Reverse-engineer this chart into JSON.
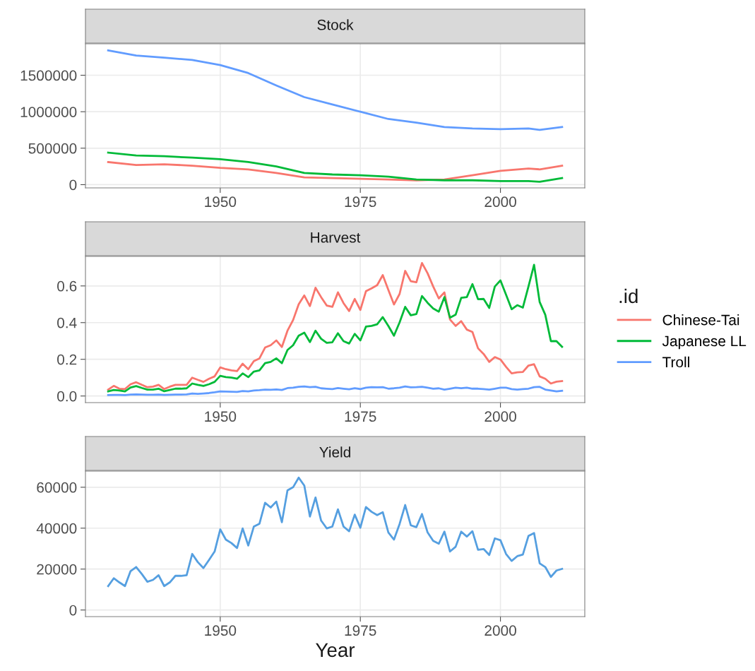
{
  "chart_data": [
    {
      "type": "line",
      "title": "Stock",
      "xlim": [
        1925.95,
        2015.05
      ],
      "xticks": [
        1950,
        1975,
        2000
      ],
      "ylim": [
        -44000,
        1931000
      ],
      "yticks": [
        0,
        500000,
        1000000,
        1500000
      ],
      "grid": true,
      "legend": false,
      "series": [
        {
          "color": "#f8766d",
          "x": [
            1930,
            1935,
            1940,
            1945,
            1950,
            1955,
            1960,
            1965,
            1970,
            1975,
            1980,
            1985,
            1990,
            1995,
            2000,
            2005,
            2007,
            2011
          ],
          "values": [
            310000,
            270000,
            280000,
            260000,
            230000,
            210000,
            160000,
            100000,
            90000,
            80000,
            70000,
            60000,
            70000,
            130000,
            190000,
            220000,
            210000,
            260000
          ]
        },
        {
          "color": "#00ba38",
          "x": [
            1930,
            1935,
            1940,
            1945,
            1950,
            1955,
            1960,
            1965,
            1970,
            1975,
            1980,
            1985,
            1990,
            1995,
            2000,
            2005,
            2007,
            2011
          ],
          "values": [
            440000,
            400000,
            390000,
            370000,
            350000,
            310000,
            250000,
            160000,
            140000,
            130000,
            110000,
            70000,
            60000,
            60000,
            50000,
            50000,
            40000,
            90000
          ]
        },
        {
          "color": "#619cff",
          "x": [
            1930,
            1935,
            1940,
            1945,
            1950,
            1955,
            1960,
            1965,
            1970,
            1975,
            1980,
            1985,
            1990,
            1995,
            2000,
            2005,
            2007,
            2011
          ],
          "values": [
            1840000,
            1770000,
            1740000,
            1710000,
            1640000,
            1530000,
            1360000,
            1200000,
            1100000,
            1000000,
            900000,
            850000,
            790000,
            770000,
            760000,
            770000,
            750000,
            790000
          ]
        }
      ]
    },
    {
      "type": "line",
      "title": "Harvest",
      "xlim": [
        1925.95,
        2015.05
      ],
      "xticks": [
        1950,
        1975,
        2000
      ],
      "ylim": [
        -0.036,
        0.761
      ],
      "yticks": [
        {
          "value": 0,
          "label": "0.0"
        },
        0.2,
        0.4,
        0.6
      ],
      "grid": true,
      "legend": "right",
      "legend_title": ".id",
      "x": [
        1930,
        1931,
        1932,
        1933,
        1934,
        1935,
        1936,
        1937,
        1938,
        1939,
        1940,
        1941,
        1942,
        1943,
        1944,
        1945,
        1946,
        1947,
        1948,
        1949,
        1950,
        1951,
        1952,
        1953,
        1954,
        1955,
        1956,
        1957,
        1958,
        1959,
        1960,
        1961,
        1962,
        1963,
        1964,
        1965,
        1966,
        1967,
        1968,
        1969,
        1970,
        1971,
        1972,
        1973,
        1974,
        1975,
        1976,
        1977,
        1978,
        1979,
        1980,
        1981,
        1982,
        1983,
        1984,
        1985,
        1986,
        1987,
        1988,
        1989,
        1990,
        1991,
        1992,
        1993,
        1994,
        1995,
        1996,
        1997,
        1998,
        1999,
        2000,
        2001,
        2002,
        2003,
        2004,
        2005,
        2006,
        2007,
        2008,
        2009,
        2010,
        2011
      ],
      "series": [
        {
          "name": "Chinese-Tai",
          "color": "#f8766d",
          "values": [
            0.035,
            0.055,
            0.04,
            0.038,
            0.064,
            0.075,
            0.061,
            0.048,
            0.051,
            0.061,
            0.038,
            0.051,
            0.061,
            0.061,
            0.061,
            0.1,
            0.088,
            0.077,
            0.094,
            0.107,
            0.156,
            0.146,
            0.14,
            0.136,
            0.176,
            0.146,
            0.19,
            0.205,
            0.264,
            0.277,
            0.303,
            0.267,
            0.356,
            0.414,
            0.5,
            0.548,
            0.49,
            0.59,
            0.539,
            0.493,
            0.486,
            0.565,
            0.506,
            0.463,
            0.529,
            0.469,
            0.571,
            0.587,
            0.604,
            0.659,
            0.578,
            0.499,
            0.556,
            0.682,
            0.626,
            0.62,
            0.725,
            0.669,
            0.597,
            0.532,
            0.565,
            0.417,
            0.382,
            0.408,
            0.362,
            0.349,
            0.26,
            0.229,
            0.186,
            0.212,
            0.199,
            0.159,
            0.123,
            0.129,
            0.131,
            0.166,
            0.173,
            0.107,
            0.094,
            0.068,
            0.078,
            0.081
          ]
        },
        {
          "name": "Japanese LL",
          "color": "#00ba38",
          "values": [
            0.025,
            0.033,
            0.03,
            0.025,
            0.046,
            0.054,
            0.044,
            0.035,
            0.035,
            0.04,
            0.026,
            0.033,
            0.04,
            0.04,
            0.042,
            0.068,
            0.061,
            0.055,
            0.064,
            0.077,
            0.11,
            0.103,
            0.1,
            0.094,
            0.123,
            0.103,
            0.133,
            0.14,
            0.179,
            0.186,
            0.205,
            0.179,
            0.251,
            0.277,
            0.329,
            0.345,
            0.294,
            0.356,
            0.312,
            0.29,
            0.293,
            0.342,
            0.299,
            0.286,
            0.339,
            0.303,
            0.378,
            0.382,
            0.391,
            0.43,
            0.382,
            0.329,
            0.401,
            0.486,
            0.44,
            0.447,
            0.545,
            0.508,
            0.477,
            0.46,
            0.539,
            0.427,
            0.443,
            0.535,
            0.539,
            0.61,
            0.528,
            0.529,
            0.48,
            0.597,
            0.63,
            0.552,
            0.473,
            0.495,
            0.482,
            0.597,
            0.715,
            0.512,
            0.443,
            0.299,
            0.299,
            0.268
          ]
        },
        {
          "name": "Troll",
          "color": "#619cff",
          "values": [
            0.005,
            0.006,
            0.006,
            0.005,
            0.008,
            0.009,
            0.008,
            0.007,
            0.007,
            0.008,
            0.006,
            0.007,
            0.008,
            0.008,
            0.009,
            0.014,
            0.012,
            0.014,
            0.016,
            0.02,
            0.025,
            0.024,
            0.023,
            0.022,
            0.027,
            0.025,
            0.03,
            0.032,
            0.035,
            0.034,
            0.036,
            0.033,
            0.043,
            0.045,
            0.05,
            0.052,
            0.048,
            0.05,
            0.042,
            0.04,
            0.038,
            0.043,
            0.04,
            0.037,
            0.042,
            0.038,
            0.045,
            0.048,
            0.047,
            0.048,
            0.04,
            0.042,
            0.045,
            0.052,
            0.047,
            0.048,
            0.05,
            0.045,
            0.04,
            0.042,
            0.035,
            0.04,
            0.045,
            0.042,
            0.045,
            0.04,
            0.04,
            0.038,
            0.035,
            0.04,
            0.045,
            0.045,
            0.038,
            0.035,
            0.038,
            0.04,
            0.048,
            0.05,
            0.035,
            0.03,
            0.025,
            0.028
          ]
        }
      ]
    },
    {
      "type": "line",
      "title": "Yield",
      "xlabel": "Year",
      "xlim": [
        1925.95,
        2015.05
      ],
      "xticks": [
        1950,
        1975,
        2000
      ],
      "ylim": [
        -3233,
        67884
      ],
      "yticks": [
        0,
        20000,
        40000,
        60000
      ],
      "grid": true,
      "legend": false,
      "x": [
        1930,
        1931,
        1932,
        1933,
        1934,
        1935,
        1936,
        1937,
        1938,
        1939,
        1940,
        1941,
        1942,
        1943,
        1944,
        1945,
        1946,
        1947,
        1948,
        1949,
        1950,
        1951,
        1952,
        1953,
        1954,
        1955,
        1956,
        1957,
        1958,
        1959,
        1960,
        1961,
        1962,
        1963,
        1964,
        1965,
        1966,
        1967,
        1968,
        1969,
        1970,
        1971,
        1972,
        1973,
        1974,
        1975,
        1976,
        1977,
        1978,
        1979,
        1980,
        1981,
        1982,
        1983,
        1984,
        1985,
        1986,
        1987,
        1988,
        1989,
        1990,
        1991,
        1992,
        1993,
        1994,
        1995,
        1996,
        1997,
        1998,
        1999,
        2000,
        2001,
        2002,
        2003,
        2004,
        2005,
        2006,
        2007,
        2008,
        2009,
        2010,
        2011
      ],
      "series": [
        {
          "color": "#559fe0",
          "values": [
            11700,
            15500,
            13500,
            11700,
            19000,
            21000,
            17600,
            13800,
            14700,
            17000,
            11700,
            13500,
            16700,
            16700,
            17000,
            27400,
            23400,
            20500,
            24500,
            28600,
            39400,
            34400,
            32700,
            30300,
            39900,
            31500,
            40800,
            42200,
            52400,
            50100,
            53000,
            42900,
            58500,
            60000,
            64700,
            60800,
            45700,
            55000,
            43700,
            39900,
            40800,
            49200,
            40800,
            38500,
            46600,
            40200,
            50300,
            48000,
            46400,
            47800,
            37900,
            34400,
            42000,
            51300,
            41400,
            40500,
            46900,
            37900,
            33800,
            32400,
            38300,
            28600,
            30900,
            38300,
            35900,
            38500,
            29400,
            29800,
            26900,
            35000,
            34100,
            27400,
            24000,
            26300,
            27100,
            36200,
            37600,
            22800,
            21000,
            16200,
            19300,
            20100
          ]
        }
      ]
    }
  ]
}
